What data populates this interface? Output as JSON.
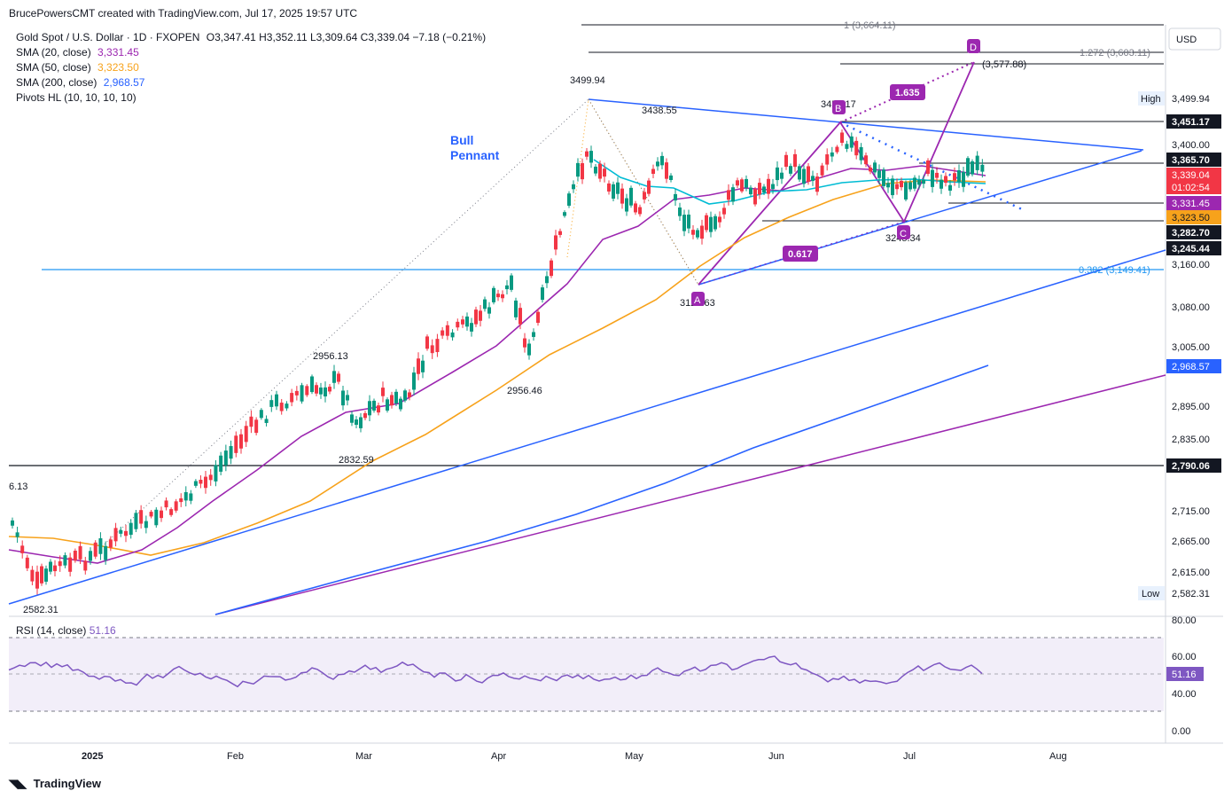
{
  "header": {
    "created_by": "BrucePowersCMT created with TradingView.com, Jul 17, 2025 19:57 UTC"
  },
  "legend": {
    "symbol": "Gold Spot / U.S. Dollar · 1D · FXOPEN",
    "ohlc": "O3,347.41 H3,352.11 L3,309.64 C3,339.04 −7.18 (−0.21%)",
    "sma20_label": "SMA (20, close)",
    "sma20_value": "3,331.45",
    "sma50_label": "SMA (50, close)",
    "sma50_value": "3,323.50",
    "sma200_label": "SMA (200, close)",
    "sma200_value": "2,968.57",
    "pivots_label": "Pivots HL (10, 10, 10, 10)"
  },
  "rsi_legend": {
    "label": "RSI (14, close)",
    "value": "51.16"
  },
  "footer": {
    "brand": "TradingView"
  },
  "colors": {
    "up": "#089981",
    "down": "#f23645",
    "sma20": "#9c27b0",
    "sma50": "#f7a21b",
    "sma200": "#2962ff",
    "trend": "#2962ff",
    "pattern": "#9c27b0",
    "rsi": "#7e57c2"
  },
  "chart_data": {
    "type": "candlestick",
    "y_axis": {
      "currency": "USD",
      "ticks": [
        "3,400.00",
        "3,160.00",
        "3,080.00",
        "3,005.00",
        "2,895.00",
        "2,835.00",
        "2,715.00",
        "2,665.00",
        "2,615.00"
      ],
      "price_tags": [
        {
          "label": "High",
          "value": "3,499.94"
        },
        {
          "label": "",
          "value": "3,451.17"
        },
        {
          "label": "",
          "value": "3,365.70"
        },
        {
          "label": "",
          "value": "3,339.04"
        },
        {
          "label": "",
          "value": "01:02:54"
        },
        {
          "label": "",
          "value": "3,331.45"
        },
        {
          "label": "",
          "value": "3,323.50"
        },
        {
          "label": "",
          "value": "3,282.70"
        },
        {
          "label": "",
          "value": "3,245.44"
        },
        {
          "label": "",
          "value": "2,968.57"
        },
        {
          "label": "",
          "value": "2,790.06"
        },
        {
          "label": "Low",
          "value": "2,582.31"
        }
      ]
    },
    "x_axis": {
      "labels": [
        "2025",
        "Feb",
        "Mar",
        "Apr",
        "May",
        "Jun",
        "Jul",
        "Aug"
      ]
    },
    "pivot_labels": [
      "6.13",
      "2582.31",
      "2956.13",
      "2832.59",
      "3499.94",
      "3438.55",
      "2956.46",
      "3451.17",
      "3120.63",
      "3245.34"
    ],
    "pattern": {
      "points": [
        "A",
        "B",
        "C",
        "D"
      ],
      "ratios": [
        "1.635",
        "0.617"
      ]
    },
    "annotation": "Bull\nPennant",
    "fib_levels": [
      {
        "label": "0.382 (3,149.41)"
      },
      {
        "label": "1.272 (3,603.11)"
      },
      {
        "label": "(3,577.88)"
      },
      {
        "label": "1 (3,664.11)"
      }
    ],
    "rsi": {
      "ticks": [
        "80.00",
        "60.00",
        "40.00",
        "0.00"
      ],
      "current": "51.16"
    }
  }
}
